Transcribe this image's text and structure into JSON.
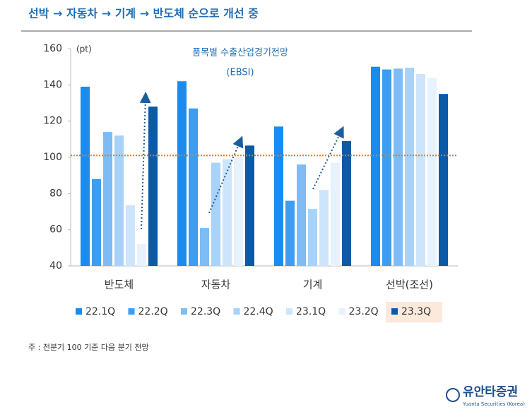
{
  "header": {
    "title": "선박 → 자동차 → 기계 → 반도체 순으로 개선 중"
  },
  "chart_data": {
    "type": "bar",
    "title": "품목별 수출산업경기전망",
    "subtitle": "(EBSI)",
    "y_unit": "(pt)",
    "categories": [
      "반도체",
      "자동차",
      "기계",
      "선박(조선)"
    ],
    "series": [
      {
        "name": "22.1Q",
        "color": "#1a8cf0",
        "values": [
          139,
          142,
          117,
          150
        ]
      },
      {
        "name": "22.2Q",
        "color": "#3c9df2",
        "values": [
          88,
          127,
          76,
          148.5
        ]
      },
      {
        "name": "22.3Q",
        "color": "#7dbcf5",
        "values": [
          114,
          61,
          96,
          149
        ]
      },
      {
        "name": "22.4Q",
        "color": "#a9d2f8",
        "values": [
          112,
          97,
          71.5,
          149.5
        ]
      },
      {
        "name": "23.1Q",
        "color": "#cde5fb",
        "values": [
          73.5,
          99,
          82,
          146
        ]
      },
      {
        "name": "23.2Q",
        "color": "#e6f2fd",
        "values": [
          52,
          100,
          97,
          144
        ]
      },
      {
        "name": "23.3Q",
        "color": "#0b5aa8",
        "values": [
          128,
          106.5,
          109,
          135
        ]
      }
    ],
    "ylim": [
      40,
      160
    ],
    "yticks": [
      40,
      60,
      80,
      100,
      120,
      140,
      160
    ],
    "reference_line": {
      "value": 101,
      "color": "#e07b24"
    },
    "highlight_series": 6
  },
  "footnote": "주 : 전분기 100 기준 다음 분기 전망",
  "logo": {
    "name": "유안타증권",
    "sub": "Yuanta Securities (Korea)"
  }
}
